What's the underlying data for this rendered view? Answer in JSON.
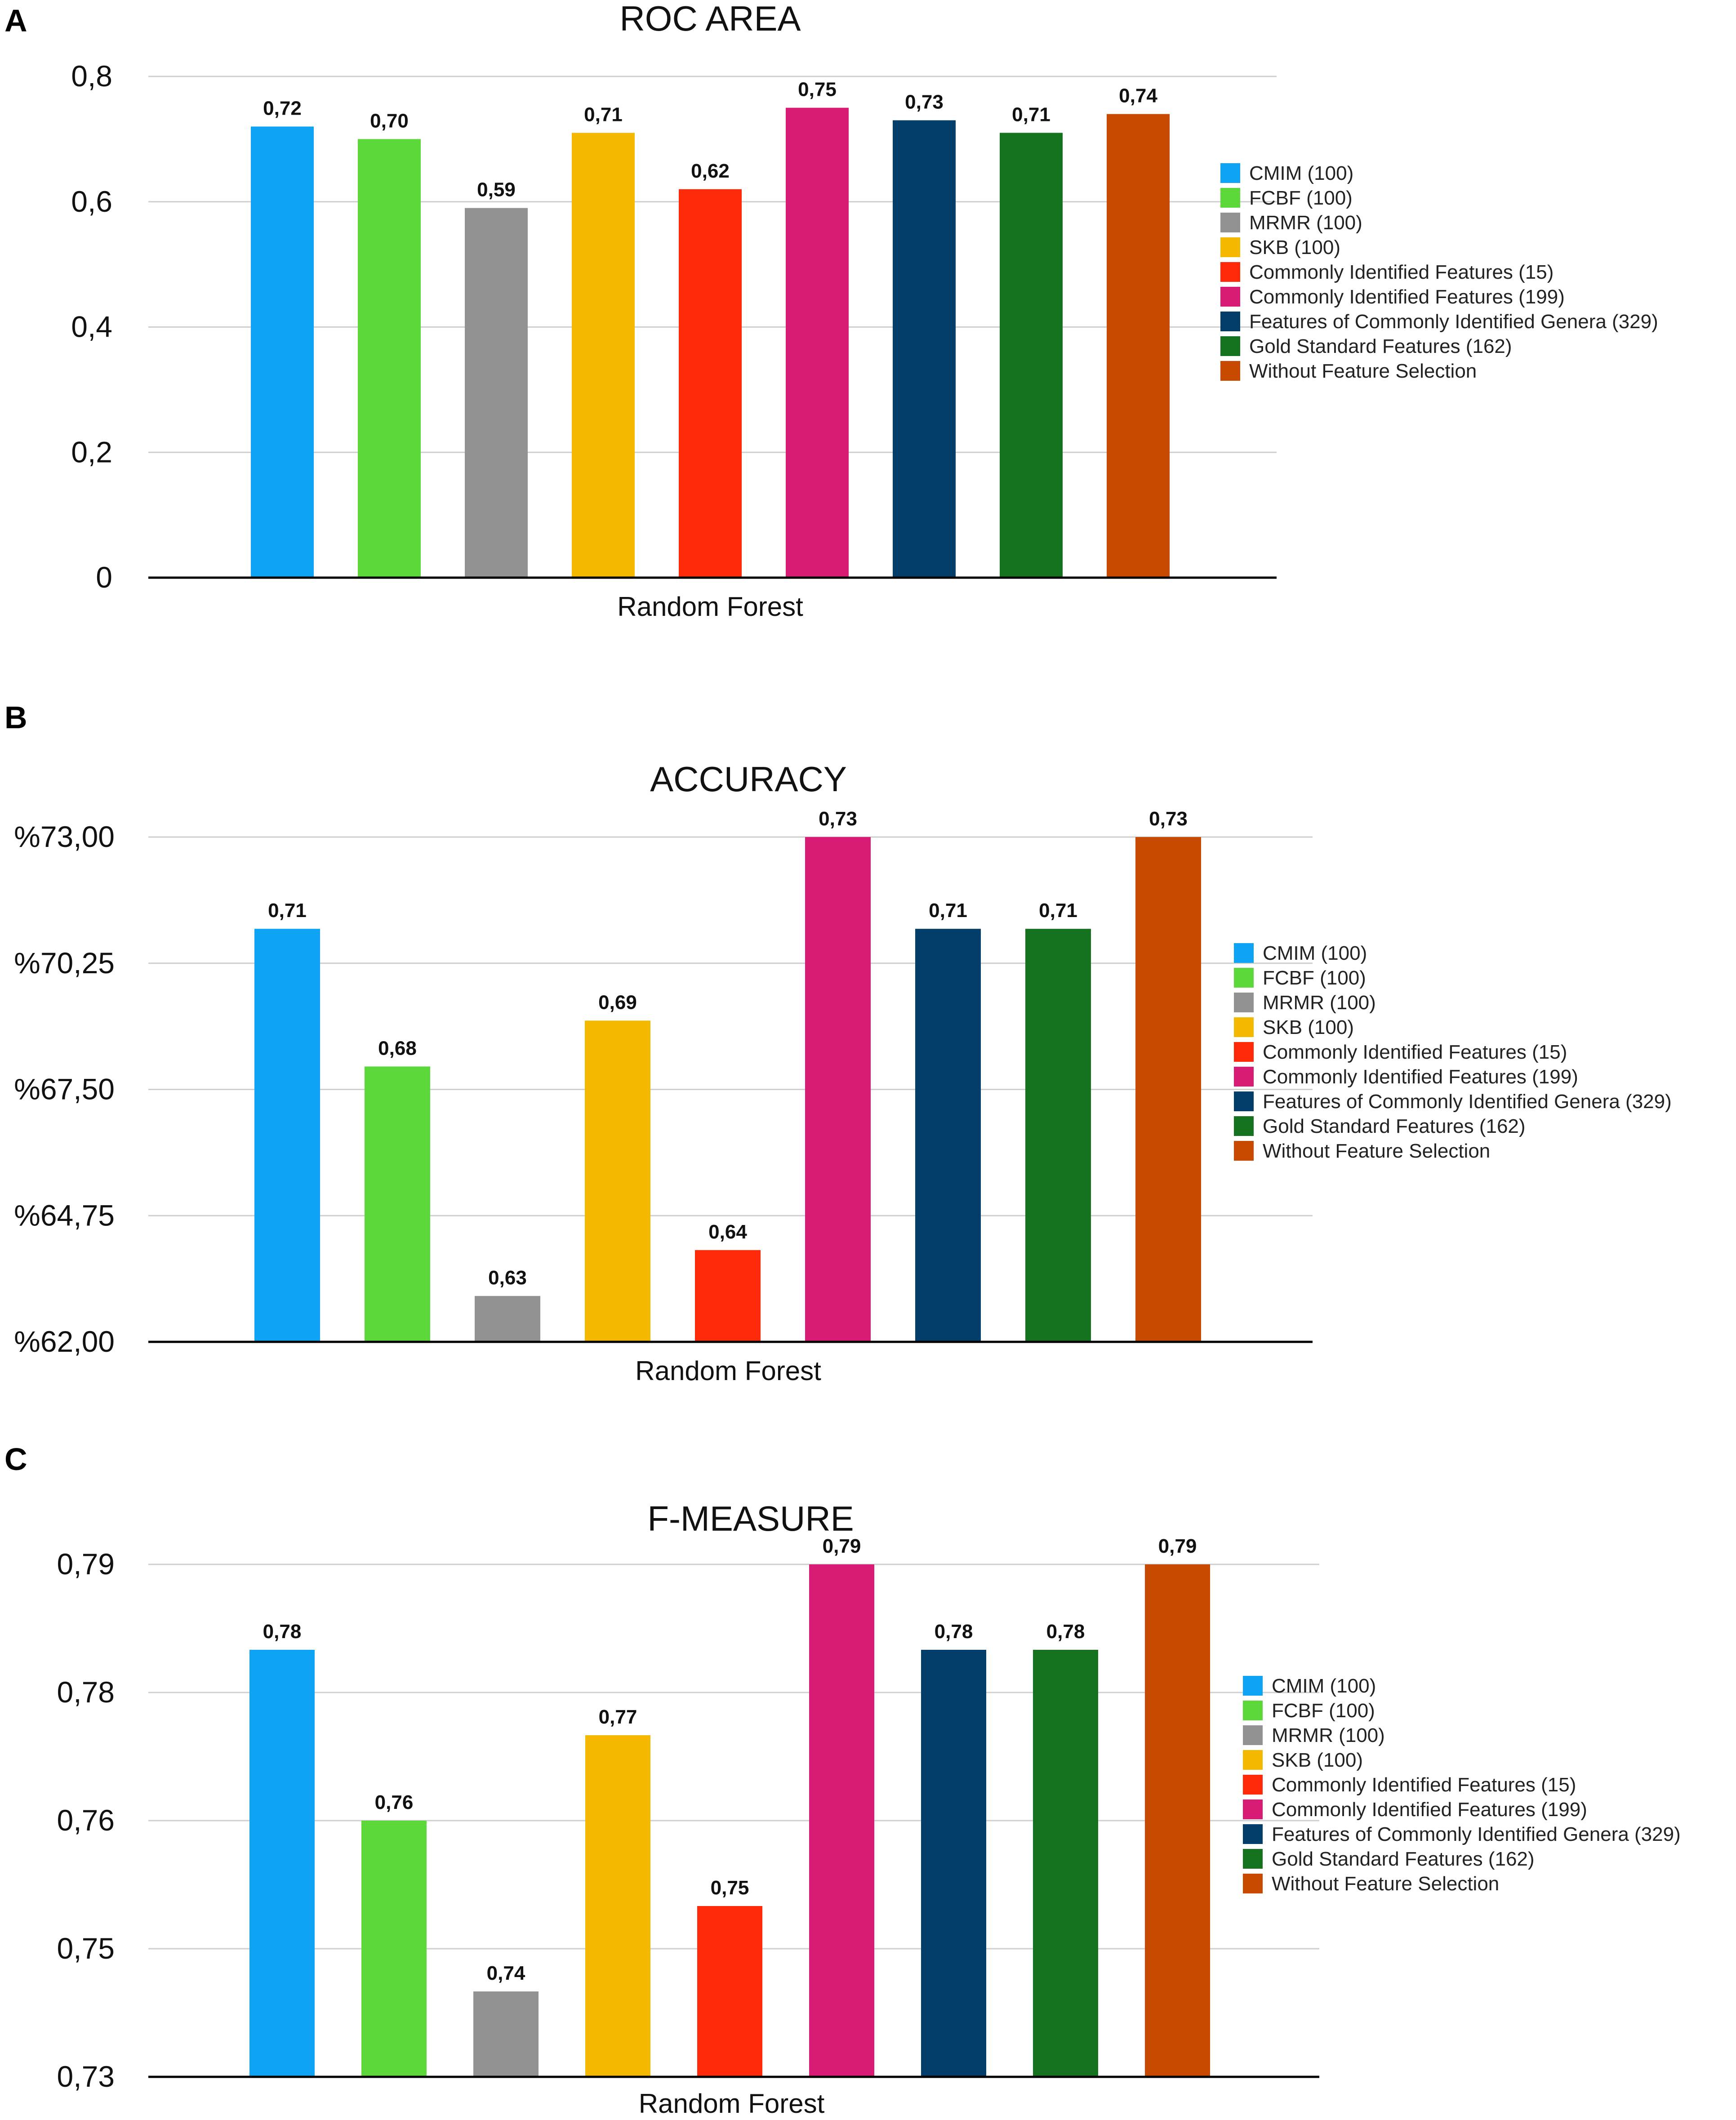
{
  "panels": [
    {
      "letter": "A",
      "chart_data": {
        "type": "bar",
        "title": "ROC AREA",
        "xlabel": "Random Forest",
        "ylabel": "",
        "ylim": [
          0,
          0.8
        ],
        "yticks": [
          0,
          0.2,
          0.4,
          0.6,
          0.8
        ],
        "ytick_labels": [
          "0",
          "0,2",
          "0,4",
          "0,6",
          "0,8"
        ],
        "series": [
          {
            "name": "CMIM (100)",
            "value": 0.72,
            "label": "0,72",
            "color": "#0fa3f5"
          },
          {
            "name": "FCBF (100)",
            "value": 0.7,
            "label": "0,70",
            "color": "#5dd83a"
          },
          {
            "name": "MRMR (100)",
            "value": 0.59,
            "label": "0,59",
            "color": "#929292"
          },
          {
            "name": "SKB (100)",
            "value": 0.71,
            "label": "0,71",
            "color": "#f4b800"
          },
          {
            "name": "Commonly Identified Features (15)",
            "value": 0.62,
            "label": "0,62",
            "color": "#ff2a0a"
          },
          {
            "name": "Commonly Identified Features (199)",
            "value": 0.75,
            "label": "0,75",
            "color": "#d81b75"
          },
          {
            "name": "Features of Commonly Identified Genera (329)",
            "value": 0.73,
            "label": "0,73",
            "color": "#033e6b"
          },
          {
            "name": "Gold Standard Features (162)",
            "value": 0.71,
            "label": "0,71",
            "color": "#15731f"
          },
          {
            "name": "Without Feature Selection",
            "value": 0.74,
            "label": "0,74",
            "color": "#c84a00"
          }
        ]
      }
    },
    {
      "letter": "B",
      "chart_data": {
        "type": "bar",
        "title": "ACCURACY",
        "xlabel": "Random Forest",
        "ylabel": "",
        "ylim": [
          62.0,
          73.0
        ],
        "yticks": [
          62.0,
          64.75,
          67.5,
          70.25,
          73.0
        ],
        "ytick_labels": [
          "%62,00",
          "%64,75",
          "%67,50",
          "%70,25",
          "%73,00"
        ],
        "series": [
          {
            "name": "CMIM (100)",
            "value": 71.0,
            "label": "0,71",
            "color": "#0fa3f5"
          },
          {
            "name": "FCBF (100)",
            "value": 68.0,
            "label": "0,68",
            "color": "#5dd83a"
          },
          {
            "name": "MRMR (100)",
            "value": 63.0,
            "label": "0,63",
            "color": "#929292"
          },
          {
            "name": "SKB (100)",
            "value": 69.0,
            "label": "0,69",
            "color": "#f4b800"
          },
          {
            "name": "Commonly Identified Features (15)",
            "value": 64.0,
            "label": "0,64",
            "color": "#ff2a0a"
          },
          {
            "name": "Commonly Identified Features (199)",
            "value": 73.0,
            "label": "0,73",
            "color": "#d81b75"
          },
          {
            "name": "Features of Commonly Identified Genera (329)",
            "value": 71.0,
            "label": "0,71",
            "color": "#033e6b"
          },
          {
            "name": "Gold Standard Features (162)",
            "value": 71.0,
            "label": "0,71",
            "color": "#15731f"
          },
          {
            "name": "Without Feature Selection",
            "value": 73.0,
            "label": "0,73",
            "color": "#c84a00"
          }
        ]
      }
    },
    {
      "letter": "C",
      "chart_data": {
        "type": "bar",
        "title": "F-MEASURE",
        "xlabel": "Random Forest",
        "ylabel": "",
        "ylim": [
          0.73,
          0.79
        ],
        "yticks": [
          0.73,
          0.745,
          0.76,
          0.775,
          0.79
        ],
        "ytick_labels": [
          "0,73",
          "0,75",
          "0,76",
          "0,78",
          "0,79"
        ],
        "series": [
          {
            "name": "CMIM (100)",
            "value": 0.78,
            "label": "0,78",
            "color": "#0fa3f5"
          },
          {
            "name": "FCBF (100)",
            "value": 0.76,
            "label": "0,76",
            "color": "#5dd83a"
          },
          {
            "name": "MRMR (100)",
            "value": 0.74,
            "label": "0,74",
            "color": "#929292"
          },
          {
            "name": "SKB (100)",
            "value": 0.77,
            "label": "0,77",
            "color": "#f4b800"
          },
          {
            "name": "Commonly Identified Features (15)",
            "value": 0.75,
            "label": "0,75",
            "color": "#ff2a0a"
          },
          {
            "name": "Commonly Identified Features (199)",
            "value": 0.79,
            "label": "0,79",
            "color": "#d81b75"
          },
          {
            "name": "Features of Commonly Identified Genera (329)",
            "value": 0.78,
            "label": "0,78",
            "color": "#033e6b"
          },
          {
            "name": "Gold Standard Features (162)",
            "value": 0.78,
            "label": "0,78",
            "color": "#15731f"
          },
          {
            "name": "Without Feature Selection",
            "value": 0.79,
            "label": "0,79",
            "color": "#c84a00"
          }
        ]
      }
    }
  ]
}
